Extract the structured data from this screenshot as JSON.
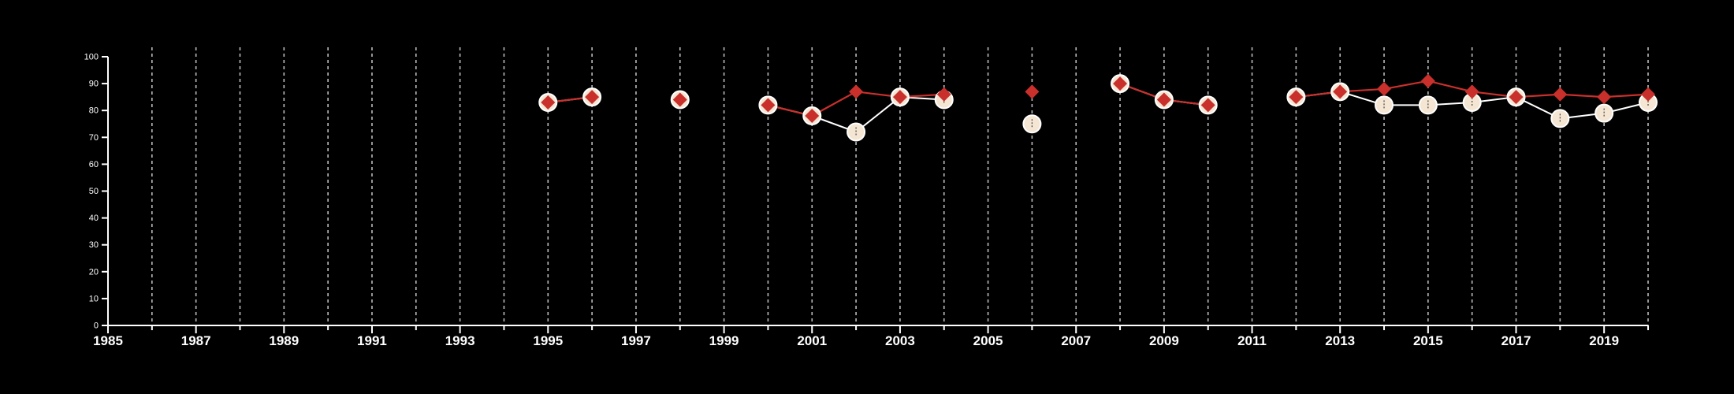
{
  "chart_data": {
    "type": "line",
    "title": "",
    "xlabel": "",
    "ylabel": "",
    "xlim": [
      1985,
      2020
    ],
    "ylim": [
      0,
      100
    ],
    "x_major_ticks": [
      1985,
      1987,
      1989,
      1991,
      1993,
      1995,
      1997,
      1999,
      2001,
      2003,
      2005,
      2007,
      2009,
      2011,
      2013,
      2015,
      2017,
      2019
    ],
    "x_tick_labels": [
      "1985",
      "1987",
      "1989",
      "1991",
      "1993",
      "1995",
      "1997",
      "1999",
      "2001",
      "2003",
      "2005",
      "2007",
      "2009",
      "2011",
      "2013",
      "2015",
      "2017",
      "2019"
    ],
    "y_ticks": [
      0,
      10,
      20,
      30,
      40,
      50,
      60,
      70,
      80,
      90,
      100
    ],
    "y_tick_labels": [
      "0",
      "10",
      "20",
      "30",
      "40",
      "50",
      "60",
      "70",
      "80",
      "90",
      "100"
    ],
    "grid": "vertical dashed at every year",
    "legend": "none",
    "colors": {
      "background": "#000000",
      "axis": "#ffffff",
      "grid": "#bbbbbb",
      "series_diamond": "#c9302c",
      "series_circle_fill": "#f5e6d3",
      "series_circle_line": "#ffffff"
    },
    "series": [
      {
        "marker": "circle",
        "points": [
          {
            "x": 1995,
            "y": 83
          },
          {
            "x": 1996,
            "y": 85
          },
          {
            "x": 1998,
            "y": 84
          },
          {
            "x": 2000,
            "y": 82
          },
          {
            "x": 2001,
            "y": 78
          },
          {
            "x": 2002,
            "y": 72
          },
          {
            "x": 2003,
            "y": 85
          },
          {
            "x": 2004,
            "y": 84
          },
          {
            "x": 2006,
            "y": 75
          },
          {
            "x": 2008,
            "y": 90
          },
          {
            "x": 2009,
            "y": 84
          },
          {
            "x": 2010,
            "y": 82
          },
          {
            "x": 2012,
            "y": 85
          },
          {
            "x": 2013,
            "y": 87
          },
          {
            "x": 2014,
            "y": 82
          },
          {
            "x": 2015,
            "y": 82
          },
          {
            "x": 2016,
            "y": 83
          },
          {
            "x": 2017,
            "y": 85
          },
          {
            "x": 2018,
            "y": 77
          },
          {
            "x": 2019,
            "y": 79
          },
          {
            "x": 2020,
            "y": 83
          }
        ]
      },
      {
        "marker": "diamond",
        "points": [
          {
            "x": 1995,
            "y": 83
          },
          {
            "x": 1996,
            "y": 85
          },
          {
            "x": 1998,
            "y": 84
          },
          {
            "x": 2000,
            "y": 82
          },
          {
            "x": 2001,
            "y": 78
          },
          {
            "x": 2002,
            "y": 87
          },
          {
            "x": 2003,
            "y": 85
          },
          {
            "x": 2004,
            "y": 86
          },
          {
            "x": 2006,
            "y": 87
          },
          {
            "x": 2008,
            "y": 90
          },
          {
            "x": 2009,
            "y": 84
          },
          {
            "x": 2010,
            "y": 82
          },
          {
            "x": 2012,
            "y": 85
          },
          {
            "x": 2013,
            "y": 87
          },
          {
            "x": 2014,
            "y": 88
          },
          {
            "x": 2015,
            "y": 91
          },
          {
            "x": 2016,
            "y": 87
          },
          {
            "x": 2017,
            "y": 85
          },
          {
            "x": 2018,
            "y": 86
          },
          {
            "x": 2019,
            "y": 85
          },
          {
            "x": 2020,
            "y": 86
          }
        ]
      }
    ]
  }
}
